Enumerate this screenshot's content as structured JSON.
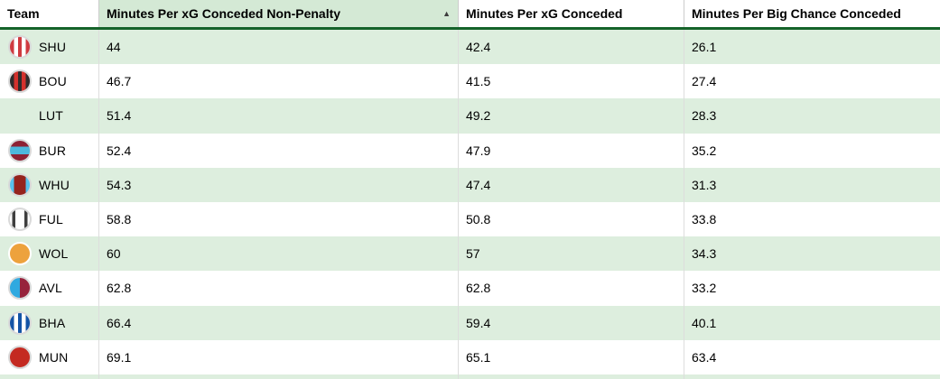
{
  "colors": {
    "row_stripe_green": "#ddeede",
    "sorted_header_green": "#d4e9d5",
    "header_underline_green": "#15632a",
    "header_grid_line": "#cccccc",
    "cell_grid_line": "#dddddd",
    "text": "#000000"
  },
  "table": {
    "sort_icon": "▲",
    "columns": [
      {
        "label": "Team",
        "sorted": false
      },
      {
        "label": "Minutes Per xG Conceded Non-Penalty",
        "sorted": true,
        "sort_direction": "ascending"
      },
      {
        "label": "Minutes Per xG Conceded",
        "sorted": false
      },
      {
        "label": "Minutes Per Big Chance Conceded",
        "sorted": false
      }
    ],
    "rows": [
      {
        "team": "SHU",
        "badge": {
          "pattern": "vstripes",
          "colors": [
            "#cf3a40",
            "#ffffff"
          ],
          "ring": "#d9d9d9"
        },
        "values": [
          "44",
          "42.4",
          "26.1"
        ]
      },
      {
        "team": "BOU",
        "badge": {
          "pattern": "vstripes",
          "colors": [
            "#2f2b2b",
            "#d4312c"
          ],
          "ring": "#d9d9d9"
        },
        "values": [
          "46.7",
          "41.5",
          "27.4"
        ]
      },
      {
        "team": "LUT",
        "badge": {
          "pattern": "none",
          "colors": [],
          "ring": "transparent"
        },
        "values": [
          "51.4",
          "49.2",
          "28.3"
        ]
      },
      {
        "team": "BUR",
        "badge": {
          "pattern": "hband",
          "colors": [
            "#8d2134",
            "#4cb8dd"
          ],
          "ring": "#d9d9d9"
        },
        "values": [
          "52.4",
          "47.9",
          "35.2"
        ]
      },
      {
        "team": "WHU",
        "badge": {
          "pattern": "vband",
          "colors": [
            "#58c1ec",
            "#95231d"
          ],
          "ring": "#d9d9d9"
        },
        "values": [
          "54.3",
          "47.4",
          "31.3"
        ]
      },
      {
        "team": "FUL",
        "badge": {
          "pattern": "arcs",
          "colors": [
            "#ffffff",
            "#3f3f3f"
          ],
          "ring": "#d9d9d9"
        },
        "values": [
          "58.8",
          "50.8",
          "33.8"
        ]
      },
      {
        "team": "WOL",
        "badge": {
          "pattern": "solid",
          "colors": [
            "#eda23d"
          ],
          "ring": "#ffffff"
        },
        "values": [
          "60",
          "57",
          "34.3"
        ]
      },
      {
        "team": "AVL",
        "badge": {
          "pattern": "split",
          "colors": [
            "#2fa9e0",
            "#97233c"
          ],
          "ring": "#d9d9d9"
        },
        "values": [
          "62.8",
          "62.8",
          "33.2"
        ]
      },
      {
        "team": "BHA",
        "badge": {
          "pattern": "vstripes",
          "colors": [
            "#1353a6",
            "#ffffff"
          ],
          "ring": "#d9d9d9"
        },
        "values": [
          "66.4",
          "59.4",
          "40.1"
        ]
      },
      {
        "team": "MUN",
        "badge": {
          "pattern": "solid",
          "colors": [
            "#c42a21"
          ],
          "ring": "#d9d9d9"
        },
        "values": [
          "69.1",
          "65.1",
          "63.4"
        ]
      }
    ]
  }
}
